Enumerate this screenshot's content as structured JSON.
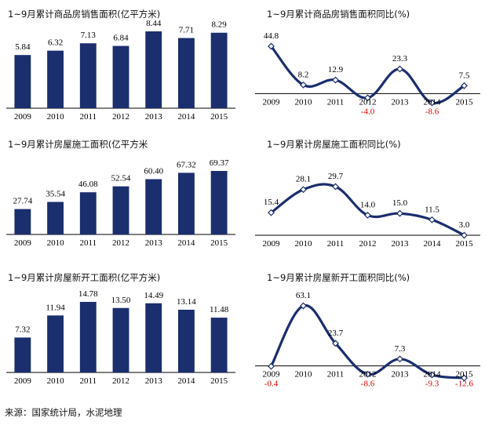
{
  "source": "来源：国家统计局，水泥地理",
  "colors": {
    "bar": "#1b2e6e",
    "line": "#1b2e6e",
    "negative": "#e00000",
    "axis": "#000000"
  },
  "chart_data": [
    {
      "type": "bar",
      "title": "1~9月累计商品房销售面积(亿平方米)",
      "categories": [
        "2009",
        "2010",
        "2011",
        "2012",
        "2013",
        "2014",
        "2015"
      ],
      "values": [
        5.84,
        6.32,
        7.13,
        6.84,
        8.44,
        7.71,
        8.29
      ],
      "labels": [
        "5.84",
        "6.32",
        "7.13",
        "6.84",
        "8.44",
        "7.71",
        "8.29"
      ],
      "ylim": [
        0,
        8.44
      ]
    },
    {
      "type": "line",
      "title": "1~9月累计商品房销售面积同比(%)",
      "categories": [
        "2009",
        "2010",
        "2011",
        "2012",
        "2013",
        "2014",
        "2015"
      ],
      "values": [
        44.8,
        8.2,
        12.9,
        -4.0,
        23.3,
        -8.6,
        7.5
      ],
      "labels": [
        "44.8",
        "8.2",
        "12.9",
        "-4.0",
        "23.3",
        "-8.6",
        "7.5"
      ],
      "ylim": [
        -8.6,
        44.8
      ]
    },
    {
      "type": "bar",
      "title": "1~9月累计房屋施工面积(亿平方米",
      "categories": [
        "2009",
        "2010",
        "2011",
        "2012",
        "2013",
        "2014",
        "2015"
      ],
      "values": [
        27.74,
        35.54,
        46.08,
        52.54,
        60.4,
        67.32,
        69.37
      ],
      "labels": [
        "27.74",
        "35.54",
        "46.08",
        "52.54",
        "60.40",
        "67.32",
        "69.37"
      ],
      "ylim": [
        0,
        69.37
      ]
    },
    {
      "type": "line",
      "title": "1~9月累计房屋施工面积同比(%)",
      "categories": [
        "2009",
        "2010",
        "2011",
        "2012",
        "2013",
        "2014",
        "2015"
      ],
      "values": [
        15.4,
        28.1,
        29.7,
        14.0,
        15.0,
        11.5,
        3.0
      ],
      "labels": [
        "15.4",
        "28.1",
        "29.7",
        "14.0",
        "15.0",
        "11.5",
        "3.0"
      ],
      "ylim": [
        3.0,
        29.7
      ]
    },
    {
      "type": "bar",
      "title": "1~9月累计房屋新开工面积(亿平方米)",
      "categories": [
        "2009",
        "2010",
        "2011",
        "2012",
        "2013",
        "2014",
        "2015"
      ],
      "values": [
        7.32,
        11.94,
        14.78,
        13.5,
        14.49,
        13.14,
        11.48
      ],
      "labels": [
        "7.32",
        "11.94",
        "14.78",
        "13.50",
        "14.49",
        "13.14",
        "11.48"
      ],
      "ylim": [
        0,
        14.78
      ]
    },
    {
      "type": "line",
      "title": "1~9月累计房屋新开工面积同比(%)",
      "categories": [
        "2009",
        "2010",
        "2011",
        "2012",
        "2013",
        "2014",
        "2015"
      ],
      "values": [
        -0.4,
        63.1,
        23.7,
        -8.6,
        7.3,
        -9.3,
        -12.6
      ],
      "labels": [
        "-0.4",
        "63.1",
        "23.7",
        "-8.6",
        "7.3",
        "-9.3",
        "-12.6"
      ],
      "ylim": [
        -12.6,
        63.1
      ]
    }
  ]
}
